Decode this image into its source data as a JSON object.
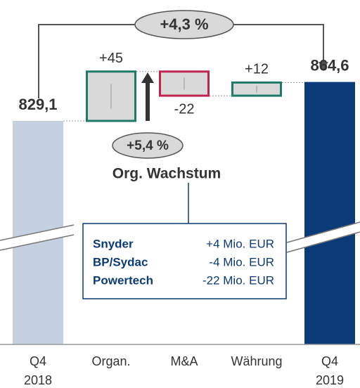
{
  "chart_data": {
    "type": "waterfall",
    "categories": [
      "Q4 2018",
      "Organ.",
      "M&A",
      "Währung",
      "Q4 2019"
    ],
    "values": [
      829.1,
      45,
      -22,
      12,
      864.6
    ],
    "value_labels": [
      "829,1",
      "+45",
      "-22",
      "+12",
      "864,6"
    ],
    "kinds": [
      "total",
      "delta",
      "delta",
      "delta",
      "total"
    ],
    "colors": {
      "start": "#c5d1e1",
      "end": "#0b3a79",
      "delta_fill": "#d9d9d9",
      "positive": "#1f7a68",
      "negative": "#c0244f"
    },
    "annotations": {
      "total_change": "+4,3 %",
      "organic_change": "+5,4 %",
      "organic_label": "Org. Wachstum"
    },
    "details": [
      {
        "name": "Snyder",
        "value": "+4 Mio. EUR"
      },
      {
        "name": "BP/Sydac",
        "value": "-4 Mio. EUR"
      },
      {
        "name": "Powertech",
        "value": "-22 Mio. EUR"
      }
    ]
  }
}
